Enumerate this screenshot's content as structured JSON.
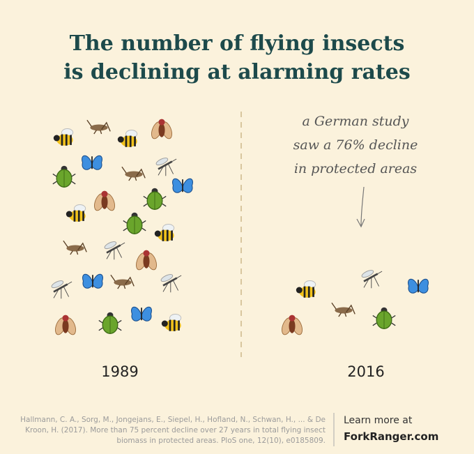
{
  "header": {
    "title_lines": [
      "The number of flying insects",
      "is declining at alarming rates"
    ]
  },
  "annotation": {
    "lines": [
      "a German study",
      "saw a 76% decline",
      "in protected areas"
    ]
  },
  "panels": [
    {
      "year": "1989"
    },
    {
      "year": "2016"
    }
  ],
  "footer": {
    "citation_lines": [
      "Hallmann, C. A., Sorg, M., Jongejans, E., Siepel, H., Hofland, N., Schwan, H., ... & De",
      "Kroon, H. (2017). More than 75 percent decline over 27 years in total flying insect",
      "biomass in protected areas. PloS one, 12(10), e0185809."
    ],
    "learn_more": "Learn more at",
    "site": "ForkRanger.com"
  }
}
